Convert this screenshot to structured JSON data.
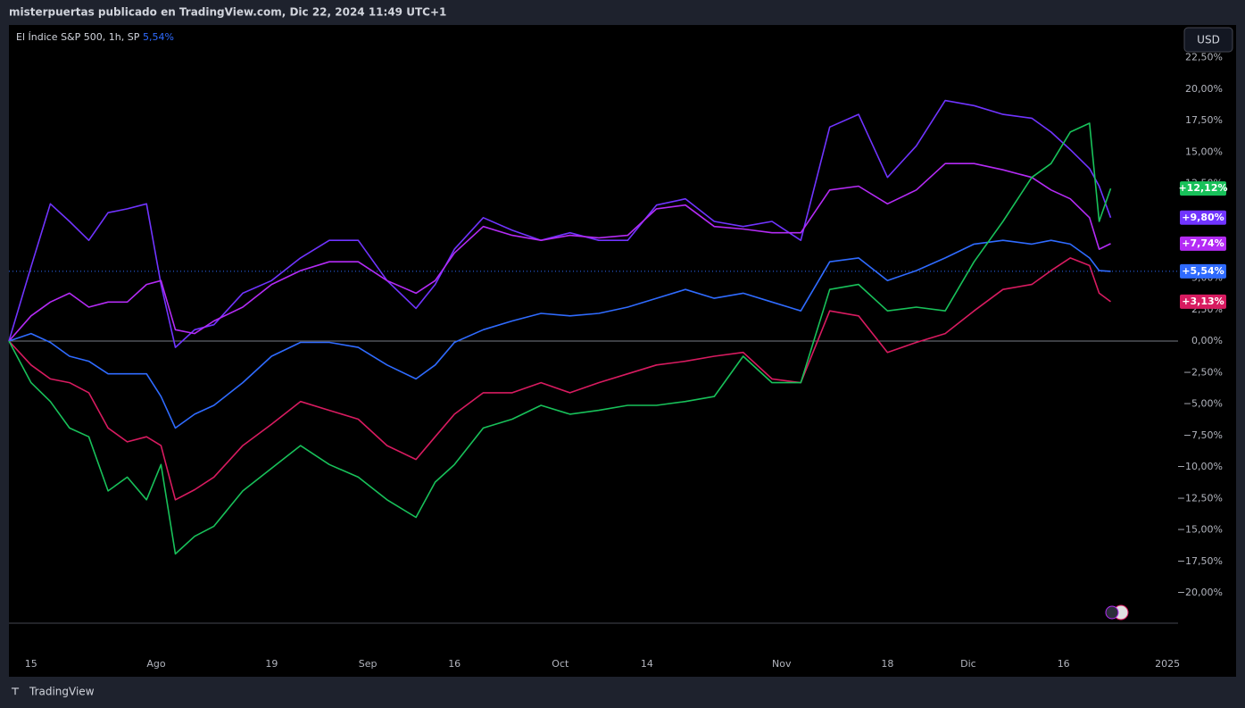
{
  "header": {
    "title": "misterpuertas publicado en TradingView.com, Dic 22, 2024 11:49 UTC+1",
    "currency": "USD",
    "footer": "TradingView"
  },
  "chart_data": {
    "type": "line",
    "legend": {
      "label": "El Índice S&P 500, 1h, SP",
      "value": "5,54%"
    },
    "x": [
      -2.3,
      0,
      2,
      4,
      6,
      8,
      10,
      12,
      13.5,
      15,
      17,
      19,
      22,
      25,
      28,
      31,
      34,
      37,
      40,
      42,
      44,
      47,
      50,
      53,
      56,
      59,
      62,
      65,
      68,
      71,
      74,
      77,
      80,
      83,
      86,
      89,
      92,
      95,
      98,
      101,
      104,
      106,
      108,
      110,
      111,
      112.2
    ],
    "series": [
      {
        "color": "#7034ff",
        "values": [
          0,
          5.9,
          10.9,
          9.5,
          8,
          10.2,
          10.5,
          10.9,
          4.5,
          -0.5,
          0.9,
          1.3,
          3.8,
          4.8,
          6.6,
          8,
          8,
          4.8,
          2.6,
          4.5,
          7.3,
          9.8,
          8.8,
          8,
          8.6,
          8,
          8,
          10.8,
          11.3,
          9.5,
          9.1,
          9.5,
          8,
          17,
          18,
          13,
          15.5,
          19.1,
          18.7,
          18,
          17.7,
          16.6,
          15.2,
          13.7,
          12.3,
          9.8
        ],
        "value_labels": [
          null,
          null,
          null,
          null,
          null,
          null,
          null,
          null,
          null,
          null,
          null,
          null,
          null,
          null,
          null,
          null,
          null,
          null,
          null,
          null,
          null,
          null,
          null,
          null,
          null,
          null,
          null,
          null,
          null,
          null,
          null,
          null,
          null,
          null,
          null,
          null,
          null,
          null,
          null,
          null,
          null,
          null,
          null,
          null,
          null,
          "+9,80%"
        ]
      },
      {
        "color": "#b42bf5",
        "values": [
          0,
          2,
          3.1,
          3.8,
          2.7,
          3.1,
          3.1,
          4.5,
          4.8,
          0.9,
          0.6,
          1.6,
          2.7,
          4.5,
          5.6,
          6.3,
          6.3,
          4.8,
          3.8,
          4.8,
          7,
          9.1,
          8.4,
          8,
          8.4,
          8.2,
          8.4,
          10.5,
          10.8,
          9.1,
          8.9,
          8.6,
          8.6,
          12,
          12.3,
          10.9,
          12,
          14.1,
          14.1,
          13.6,
          13,
          12,
          11.3,
          9.8,
          7.3,
          7.74
        ],
        "value_labels": [
          null,
          null,
          null,
          null,
          null,
          null,
          null,
          null,
          null,
          null,
          null,
          null,
          null,
          null,
          null,
          null,
          null,
          null,
          null,
          null,
          null,
          null,
          null,
          null,
          null,
          null,
          null,
          null,
          null,
          null,
          null,
          null,
          null,
          null,
          null,
          null,
          null,
          null,
          null,
          null,
          null,
          null,
          null,
          null,
          null,
          "+7,74%"
        ]
      },
      {
        "color": "#2f6bff",
        "values": [
          0,
          0.6,
          -0.1,
          -1.2,
          -1.6,
          -2.6,
          -2.6,
          -2.6,
          -4.4,
          -6.9,
          -5.8,
          -5.1,
          -3.3,
          -1.2,
          -0.1,
          -0.1,
          -0.5,
          -1.9,
          -3,
          -1.9,
          -0.1,
          0.9,
          1.6,
          2.2,
          2,
          2.2,
          2.7,
          3.4,
          4.1,
          3.4,
          3.8,
          3.1,
          2.4,
          6.3,
          6.6,
          4.8,
          5.6,
          6.6,
          7.7,
          8,
          7.7,
          8,
          7.7,
          6.6,
          5.6,
          5.54
        ],
        "value_labels": [
          null,
          null,
          null,
          null,
          null,
          null,
          null,
          null,
          null,
          null,
          null,
          null,
          null,
          null,
          null,
          null,
          null,
          null,
          null,
          null,
          null,
          null,
          null,
          null,
          null,
          null,
          null,
          null,
          null,
          null,
          null,
          null,
          null,
          null,
          null,
          null,
          null,
          null,
          null,
          null,
          null,
          null,
          null,
          null,
          null,
          "+5,54%"
        ]
      },
      {
        "color": "#d81b60",
        "values": [
          0,
          -1.9,
          -3,
          -3.3,
          -4.1,
          -6.9,
          -8,
          -7.6,
          -8.3,
          -12.6,
          -11.8,
          -10.8,
          -8.3,
          -6.6,
          -4.8,
          -5.5,
          -6.2,
          -8.3,
          -9.4,
          -7.6,
          -5.8,
          -4.1,
          -4.1,
          -3.3,
          -4.1,
          -3.3,
          -2.6,
          -1.9,
          -1.6,
          -1.2,
          -0.9,
          -3,
          -3.3,
          2.4,
          2,
          -0.9,
          -0.1,
          0.6,
          2.4,
          4.1,
          4.5,
          5.6,
          6.6,
          6,
          3.8,
          3.13
        ],
        "value_labels": [
          null,
          null,
          null,
          null,
          null,
          null,
          null,
          null,
          null,
          null,
          null,
          null,
          null,
          null,
          null,
          null,
          null,
          null,
          null,
          null,
          null,
          null,
          null,
          null,
          null,
          null,
          null,
          null,
          null,
          null,
          null,
          null,
          null,
          null,
          null,
          null,
          null,
          null,
          null,
          null,
          null,
          null,
          null,
          null,
          null,
          "+3,13%"
        ]
      },
      {
        "color": "#18c15a",
        "values": [
          0,
          -3.3,
          -4.8,
          -6.9,
          -7.6,
          -11.9,
          -10.8,
          -12.6,
          -9.8,
          -16.9,
          -15.5,
          -14.7,
          -11.9,
          -10.1,
          -8.3,
          -9.8,
          -10.8,
          -12.6,
          -14,
          -11.2,
          -9.8,
          -6.9,
          -6.2,
          -5.1,
          -5.8,
          -5.5,
          -5.1,
          -5.1,
          -4.8,
          -4.4,
          -1.2,
          -3.3,
          -3.3,
          4.1,
          4.5,
          2.4,
          2.7,
          2.4,
          6.3,
          9.5,
          13,
          14.1,
          16.6,
          17.3,
          9.5,
          12.12
        ],
        "value_labels": [
          null,
          null,
          null,
          null,
          null,
          null,
          null,
          null,
          null,
          null,
          null,
          null,
          null,
          null,
          null,
          null,
          null,
          null,
          null,
          null,
          null,
          null,
          null,
          null,
          null,
          null,
          null,
          null,
          null,
          null,
          null,
          null,
          null,
          null,
          null,
          null,
          null,
          null,
          null,
          null,
          null,
          null,
          null,
          null,
          null,
          "+12,12%"
        ]
      }
    ],
    "xlim": [
      -2.3,
      119.2
    ],
    "xticks": [
      {
        "value": 0,
        "label": "15"
      },
      {
        "value": 13,
        "label": "Ago"
      },
      {
        "value": 25,
        "label": "19"
      },
      {
        "value": 35,
        "label": "Sep"
      },
      {
        "value": 44,
        "label": "16"
      },
      {
        "value": 55,
        "label": "Oct"
      },
      {
        "value": 64,
        "label": "14"
      },
      {
        "value": 78,
        "label": "Nov"
      },
      {
        "value": 89,
        "label": "18"
      },
      {
        "value": 97.4,
        "label": "Dic"
      },
      {
        "value": 107.3,
        "label": "16"
      },
      {
        "value": 118.1,
        "label": "2025"
      }
    ],
    "ylim": [
      -22.4,
      25.1
    ],
    "yticks": [
      {
        "value": -20,
        "label": "−20,00%"
      },
      {
        "value": -17.5,
        "label": "−17,50%"
      },
      {
        "value": -15,
        "label": "−15,00%"
      },
      {
        "value": -12.5,
        "label": "−12,50%"
      },
      {
        "value": -10,
        "label": "−10,00%"
      },
      {
        "value": -7.5,
        "label": "−7,50%"
      },
      {
        "value": -5,
        "label": "−5,00%"
      },
      {
        "value": -2.5,
        "label": "−2,50%"
      },
      {
        "value": 0,
        "label": "0,00%"
      },
      {
        "value": 2.5,
        "label": "2,50%"
      },
      {
        "value": 5,
        "label": "5,00%"
      },
      {
        "value": 7.5,
        "label": "7,50%"
      },
      {
        "value": 10,
        "label": "10,00%"
      },
      {
        "value": 12.5,
        "label": "12,50%"
      },
      {
        "value": 15,
        "label": "15,00%"
      },
      {
        "value": 17.5,
        "label": "17,50%"
      },
      {
        "value": 20,
        "label": "20,00%"
      },
      {
        "value": 22.5,
        "label": "22,50%"
      }
    ]
  }
}
